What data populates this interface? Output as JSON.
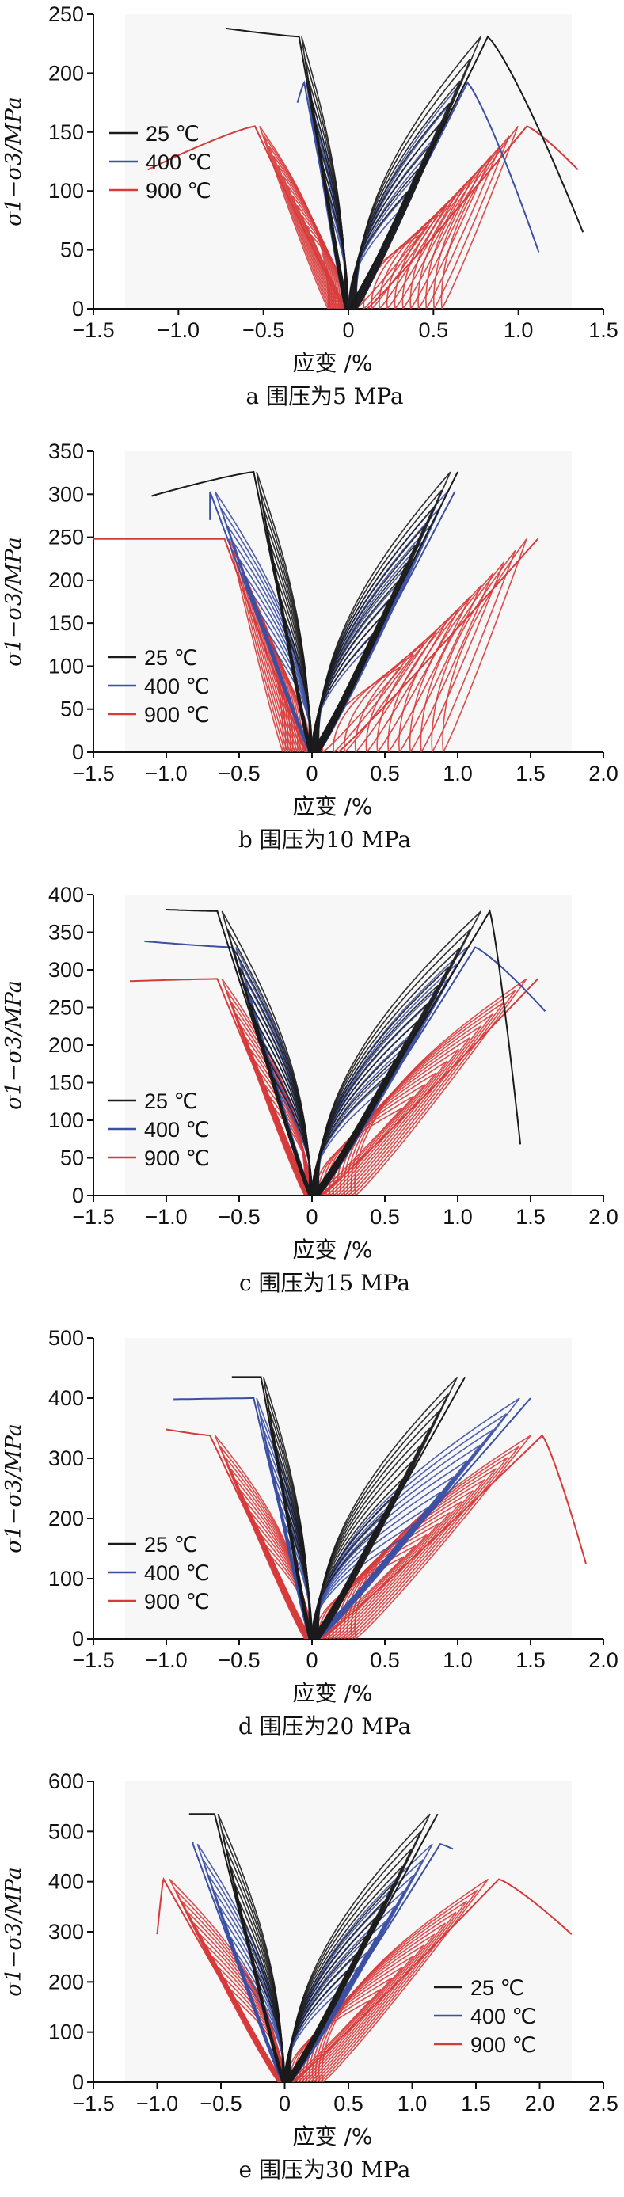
{
  "colors": {
    "c25": "#1b1b1b",
    "c400": "#3b4fa3",
    "c900": "#d63a3a",
    "plotbg": "#f7f7f7"
  },
  "chart_data": [
    {
      "type": "line",
      "caption": "a  围压为5 MPa",
      "xlabel": "应变 /%",
      "ylabel": "σ1−σ3/MPa",
      "xlim": [
        -1.5,
        1.5
      ],
      "ylim": [
        0,
        250
      ],
      "xticks": [
        -1.5,
        -1.0,
        -0.5,
        0,
        0.5,
        1.0,
        1.5
      ],
      "xtick_labels": [
        "−1.5",
        "−1.0",
        "−0.5",
        "0",
        "0.5",
        "1.0",
        "1.5"
      ],
      "yticks": [
        0,
        50,
        100,
        150,
        200,
        250
      ],
      "ytick_labels": [
        "0",
        "50",
        "100",
        "150",
        "200",
        "250"
      ],
      "legend_position": "left-middle",
      "series": [
        {
          "name": "25 ℃",
          "peak": 231,
          "peak_ax": 0.82,
          "end_ax": 1.38,
          "end_stress": 65,
          "peak_lat": -0.29,
          "end_lat": -0.72,
          "end_lat_stress": 238,
          "cycles": 8,
          "color": "c25"
        },
        {
          "name": "400 ℃",
          "peak": 192,
          "peak_ax": 0.7,
          "end_ax": 1.12,
          "end_stress": 48,
          "peak_lat": -0.26,
          "end_lat": -0.3,
          "end_lat_stress": 175,
          "cycles": 8,
          "color": "c400"
        },
        {
          "name": "900 ℃",
          "peak": 155,
          "peak_ax": 1.05,
          "end_ax": 1.35,
          "end_stress": 118,
          "peak_lat": -0.55,
          "end_lat": -1.18,
          "end_lat_stress": 118,
          "cycles": 12,
          "color": "c900",
          "residual_ax": 0.55,
          "residual_lat": -0.12
        }
      ]
    },
    {
      "type": "line",
      "caption": "b  围压为10 MPa",
      "xlabel": "应变 /%",
      "ylabel": "σ1−σ3/MPa",
      "xlim": [
        -1.5,
        2.0
      ],
      "ylim": [
        0,
        350
      ],
      "xticks": [
        -1.5,
        -1.0,
        -0.5,
        0,
        0.5,
        1.0,
        1.5,
        2.0
      ],
      "xtick_labels": [
        "−1.5",
        "−1.0",
        "−0.5",
        "0",
        "0.5",
        "1.0",
        "1.5",
        "2.0"
      ],
      "yticks": [
        0,
        50,
        100,
        150,
        200,
        250,
        300,
        350
      ],
      "ytick_labels": [
        "0",
        "50",
        "100",
        "150",
        "200",
        "250",
        "300",
        "350"
      ],
      "legend_position": "left-bottom",
      "series": [
        {
          "name": "25 ℃",
          "peak": 326,
          "peak_ax": 1.0,
          "end_ax": 1.0,
          "end_stress": 326,
          "peak_lat": -0.4,
          "end_lat": -1.1,
          "end_lat_stress": 298,
          "cycles": 10,
          "color": "c25"
        },
        {
          "name": "400 ℃",
          "peak": 303,
          "peak_ax": 0.98,
          "end_ax": 0.98,
          "end_stress": 303,
          "peak_lat": -0.7,
          "end_lat": -0.7,
          "end_lat_stress": 270,
          "cycles": 10,
          "color": "c400"
        },
        {
          "name": "900 ℃",
          "peak": 248,
          "peak_ax": 1.55,
          "end_ax": 1.55,
          "end_stress": 248,
          "peak_lat": -0.6,
          "end_lat": -1.5,
          "end_lat_stress": 248,
          "cycles": 12,
          "color": "c900",
          "residual_ax": 0.9,
          "residual_lat": -0.2
        }
      ]
    },
    {
      "type": "line",
      "caption": "c  围压为15 MPa",
      "xlabel": "应变 /%",
      "ylabel": "σ1−σ3/MPa",
      "xlim": [
        -1.5,
        2.0
      ],
      "ylim": [
        0,
        400
      ],
      "xticks": [
        -1.5,
        -1.0,
        -0.5,
        0,
        0.5,
        1.0,
        1.5,
        2.0
      ],
      "xtick_labels": [
        "−1.5",
        "−1.0",
        "−0.5",
        "0",
        "0.5",
        "1.0",
        "1.5",
        "2.0"
      ],
      "yticks": [
        0,
        50,
        100,
        150,
        200,
        250,
        300,
        350,
        400
      ],
      "ytick_labels": [
        "0",
        "50",
        "100",
        "150",
        "200",
        "250",
        "300",
        "350",
        "400"
      ],
      "legend_position": "left-bottom",
      "series": [
        {
          "name": "25 ℃",
          "peak": 378,
          "peak_ax": 1.22,
          "end_ax": 1.43,
          "end_stress": 68,
          "peak_lat": -0.65,
          "end_lat": -1.0,
          "end_lat_stress": 380,
          "cycles": 10,
          "color": "c25"
        },
        {
          "name": "400 ℃",
          "peak": 330,
          "peak_ax": 1.12,
          "end_ax": 1.6,
          "end_stress": 245,
          "peak_lat": -0.55,
          "end_lat": -1.15,
          "end_lat_stress": 338,
          "cycles": 10,
          "color": "c400"
        },
        {
          "name": "900 ℃",
          "peak": 288,
          "peak_ax": 1.55,
          "end_ax": 1.55,
          "end_stress": 288,
          "peak_lat": -0.65,
          "end_lat": -1.25,
          "end_lat_stress": 285,
          "cycles": 12,
          "color": "c900",
          "residual_ax": 0.3,
          "residual_lat": -0.05
        }
      ]
    },
    {
      "type": "line",
      "caption": "d  围压为20 MPa",
      "xlabel": "应变 /%",
      "ylabel": "σ1−σ3/MPa",
      "xlim": [
        -1.5,
        2.0
      ],
      "ylim": [
        0,
        500
      ],
      "xticks": [
        -1.5,
        -1.0,
        -0.5,
        0,
        0.5,
        1.0,
        1.5,
        2.0
      ],
      "xtick_labels": [
        "−1.5",
        "−1.0",
        "−0.5",
        "0",
        "0.5",
        "1.0",
        "1.5",
        "2.0"
      ],
      "yticks": [
        0,
        100,
        200,
        300,
        400,
        500
      ],
      "ytick_labels": [
        "0",
        "100",
        "200",
        "300",
        "400",
        "500"
      ],
      "legend_position": "left-bottom",
      "series": [
        {
          "name": "25 ℃",
          "peak": 435,
          "peak_ax": 1.05,
          "end_ax": 1.05,
          "end_stress": 435,
          "peak_lat": -0.35,
          "end_lat": -0.55,
          "end_lat_stress": 435,
          "cycles": 10,
          "color": "c25"
        },
        {
          "name": "400 ℃",
          "peak": 400,
          "peak_ax": 1.5,
          "end_ax": 1.5,
          "end_stress": 400,
          "peak_lat": -0.4,
          "end_lat": -0.95,
          "end_lat_stress": 398,
          "cycles": 10,
          "color": "c400"
        },
        {
          "name": "900 ℃",
          "peak": 338,
          "peak_ax": 1.58,
          "end_ax": 1.88,
          "end_stress": 125,
          "peak_lat": -0.7,
          "end_lat": -1.0,
          "end_lat_stress": 348,
          "cycles": 12,
          "color": "c900",
          "residual_ax": 0.3,
          "residual_lat": -0.05
        }
      ]
    },
    {
      "type": "line",
      "caption": "e  围压为30 MPa",
      "xlabel": "应变 /%",
      "ylabel": "σ1−σ3/MPa",
      "xlim": [
        -1.5,
        2.5
      ],
      "ylim": [
        0,
        600
      ],
      "xticks": [
        -1.5,
        -1.0,
        -0.5,
        0,
        0.5,
        1.0,
        1.5,
        2.0,
        2.5
      ],
      "xtick_labels": [
        "−1.5",
        "−1.0",
        "−0.5",
        "0",
        "0.5",
        "1.0",
        "1.5",
        "2.0",
        "2.5"
      ],
      "yticks": [
        0,
        100,
        200,
        300,
        400,
        500,
        600
      ],
      "ytick_labels": [
        "0",
        "100",
        "200",
        "300",
        "400",
        "500",
        "600"
      ],
      "legend_position": "right-bottom",
      "series": [
        {
          "name": "25 ℃",
          "peak": 535,
          "peak_ax": 1.2,
          "end_ax": 1.2,
          "end_stress": 535,
          "peak_lat": -0.55,
          "end_lat": -0.75,
          "end_lat_stress": 535,
          "cycles": 10,
          "color": "c25"
        },
        {
          "name": "400 ℃",
          "peak": 475,
          "peak_ax": 1.22,
          "end_ax": 1.32,
          "end_stress": 465,
          "peak_lat": -0.72,
          "end_lat": -0.72,
          "end_lat_stress": 480,
          "cycles": 10,
          "color": "c400"
        },
        {
          "name": "900 ℃",
          "peak": 405,
          "peak_ax": 1.68,
          "end_ax": 2.25,
          "end_stress": 295,
          "peak_lat": -0.95,
          "end_lat": -1.0,
          "end_lat_stress": 295,
          "cycles": 12,
          "color": "c900",
          "residual_ax": 0.3,
          "residual_lat": -0.05
        }
      ]
    }
  ]
}
